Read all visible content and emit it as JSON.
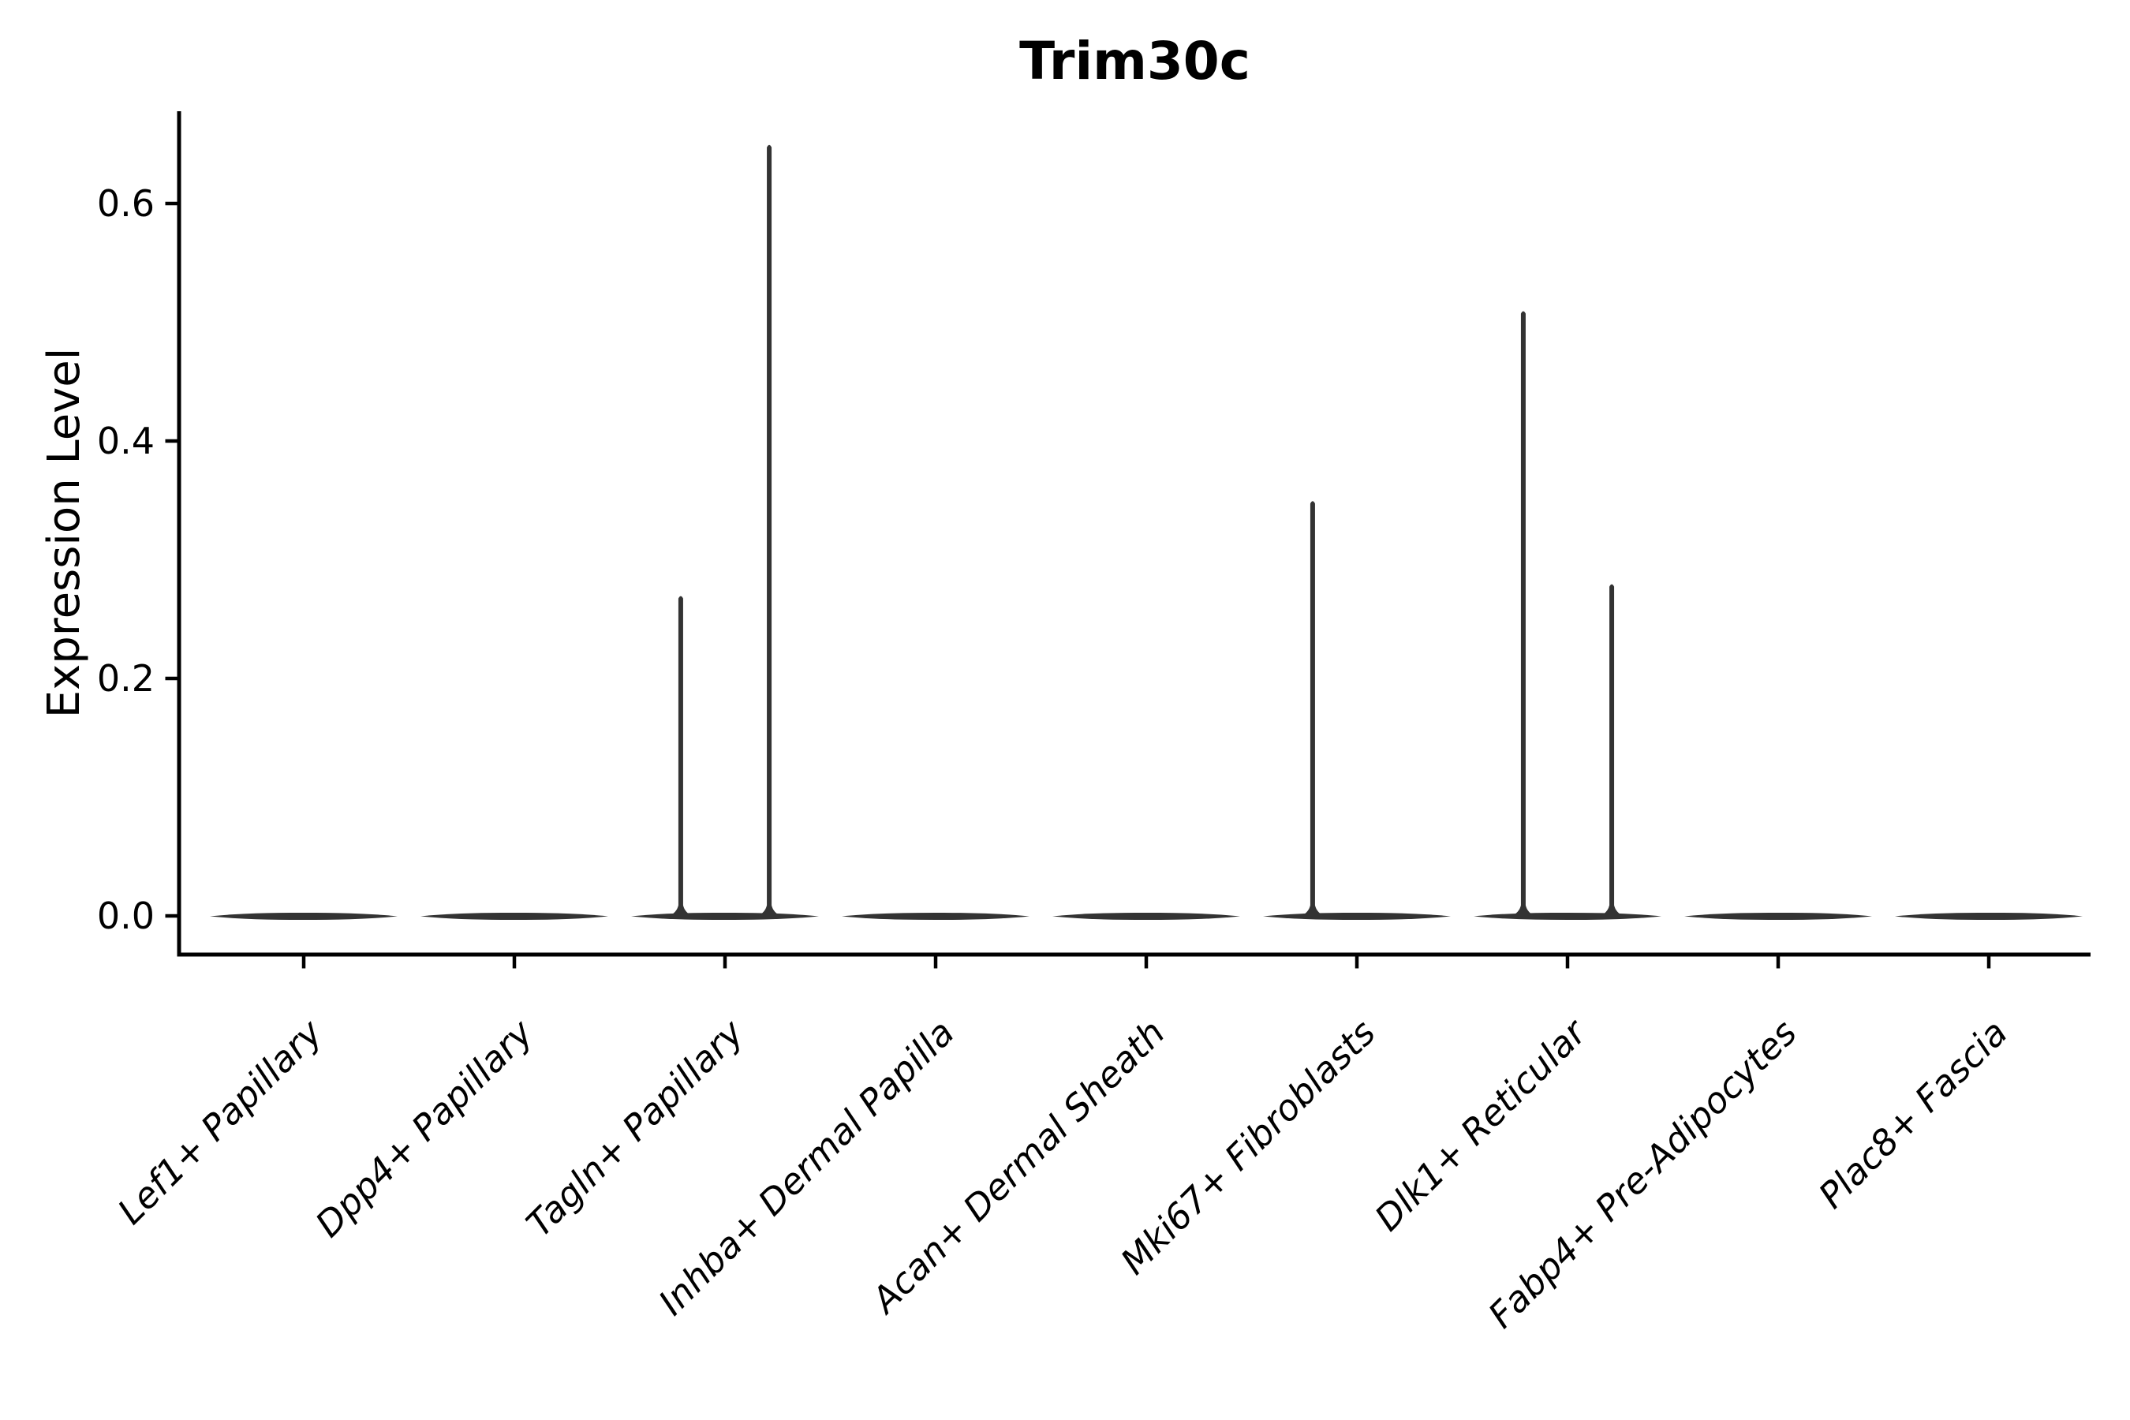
{
  "chart_data": {
    "type": "violin",
    "title": "Trim30c",
    "xlabel": "",
    "ylabel": "Expression Level",
    "categories": [
      "Lef1+ Papillary",
      "Dpp4+ Papillary",
      "Tagln+ Papillary",
      "Inhba+ Dermal Papilla",
      "Acan+ Dermal Sheath",
      "Mki67+ Fibroblasts",
      "Dlk1+ Reticular",
      "Fabp4+ Pre-Adipocytes",
      "Plac8+ Fascia"
    ],
    "y_ticks": [
      0.0,
      0.2,
      0.4,
      0.6
    ],
    "y_tick_labels": [
      "0.0",
      "0.2",
      "0.4",
      "0.6"
    ],
    "ylim": [
      -0.034,
      0.677
    ],
    "baseline_value": 0.0,
    "grid": false,
    "legend": "none",
    "violins": [
      {
        "category": "Lef1+ Papillary",
        "body_value": 0.0,
        "spikes": []
      },
      {
        "category": "Dpp4+ Papillary",
        "body_value": 0.0,
        "spikes": []
      },
      {
        "category": "Tagln+ Papillary",
        "body_value": 0.0,
        "spikes": [
          {
            "offset": -0.21,
            "max": 0.27
          },
          {
            "offset": 0.21,
            "max": 0.65
          }
        ]
      },
      {
        "category": "Inhba+ Dermal Papilla",
        "body_value": 0.0,
        "spikes": []
      },
      {
        "category": "Acan+ Dermal Sheath",
        "body_value": 0.0,
        "spikes": []
      },
      {
        "category": "Mki67+ Fibroblasts",
        "body_value": 0.0,
        "spikes": [
          {
            "offset": -0.21,
            "max": 0.35
          }
        ]
      },
      {
        "category": "Dlk1+ Reticular",
        "body_value": 0.0,
        "spikes": [
          {
            "offset": -0.21,
            "max": 0.51
          },
          {
            "offset": 0.21,
            "max": 0.28
          }
        ]
      },
      {
        "category": "Fabp4+ Pre-Adipocytes",
        "body_value": 0.0,
        "spikes": []
      },
      {
        "category": "Plac8+ Fascia",
        "body_value": 0.0,
        "spikes": []
      }
    ],
    "style": {
      "violin_color": "#333333",
      "axis_color": "#000000",
      "text_color": "#000000",
      "background": "#ffffff"
    }
  }
}
